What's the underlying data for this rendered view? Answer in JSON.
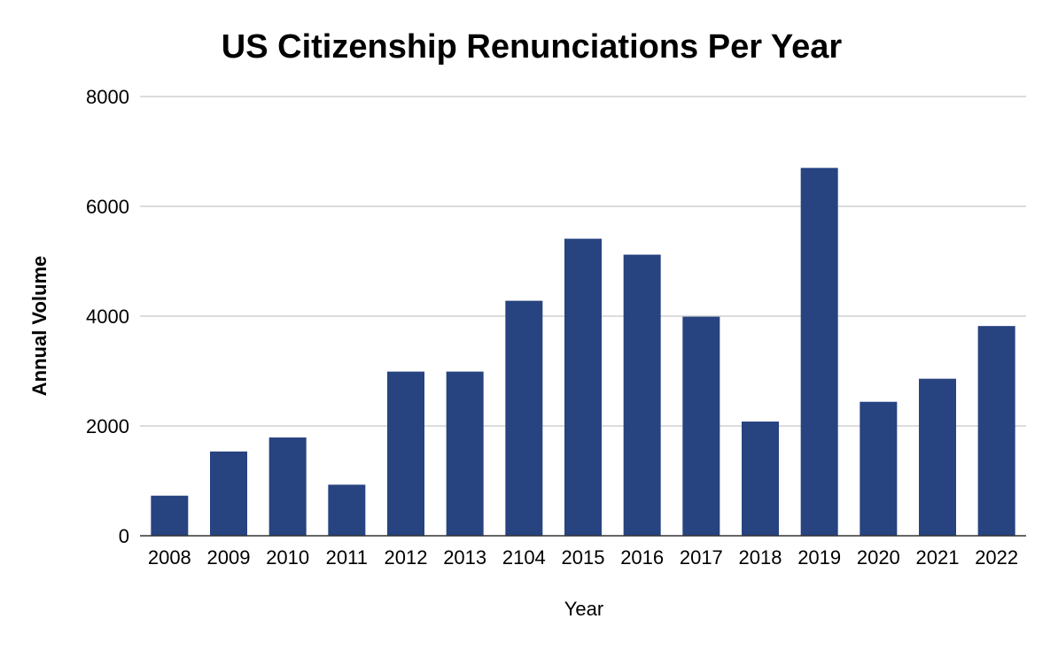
{
  "chart_data": {
    "type": "bar",
    "title": "US Citizenship Renunciations Per Year",
    "xlabel": "Year",
    "ylabel": "Annual Volume",
    "categories": [
      "2008",
      "2009",
      "2010",
      "2011",
      "2012",
      "2013",
      "2104",
      "2015",
      "2016",
      "2017",
      "2018",
      "2019",
      "2020",
      "2021",
      "2022"
    ],
    "values": [
      730,
      1535,
      1790,
      930,
      2990,
      2990,
      4280,
      5410,
      5120,
      3990,
      2080,
      6700,
      2440,
      2860,
      3820
    ],
    "ylim": [
      0,
      8000
    ],
    "yticks": [
      0,
      2000,
      4000,
      6000,
      8000
    ],
    "grid": true,
    "legend": "none",
    "colors": {
      "bar": "#274380",
      "grid": "#c8c8c8",
      "baseline": "#333333",
      "text": "#000000"
    }
  }
}
